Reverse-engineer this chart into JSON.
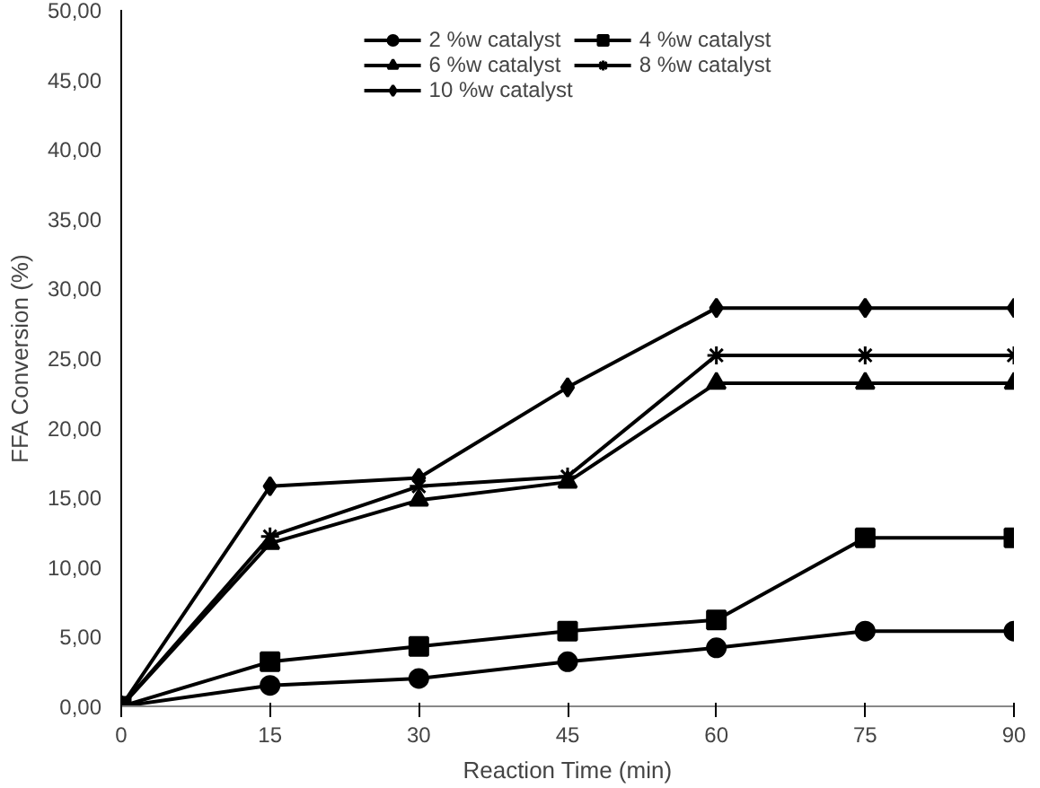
{
  "chart_data": {
    "type": "line",
    "xlabel": "Reaction Time (min)",
    "ylabel": "FFA Conversion (%)",
    "x": [
      0,
      15,
      30,
      45,
      60,
      75,
      90
    ],
    "xlim": [
      0,
      90
    ],
    "xticks": [
      0,
      15,
      30,
      45,
      60,
      75,
      90
    ],
    "ylim": [
      0,
      50
    ],
    "yticks": [
      {
        "value": 0,
        "label": "0,00"
      },
      {
        "value": 5,
        "label": "5,00"
      },
      {
        "value": 10,
        "label": "10,00"
      },
      {
        "value": 15,
        "label": "15,00"
      },
      {
        "value": 20,
        "label": "20,00"
      },
      {
        "value": 25,
        "label": "25,00"
      },
      {
        "value": 30,
        "label": "30,00"
      },
      {
        "value": 35,
        "label": "35,00"
      },
      {
        "value": 40,
        "label": "40,00"
      },
      {
        "value": 45,
        "label": "45,00"
      },
      {
        "value": 50,
        "label": "50,00"
      }
    ],
    "grid": false,
    "legend": "top",
    "line_style": "solid",
    "series": [
      {
        "name": "2 %w catalyst",
        "color": "#000000",
        "marker": "circle",
        "values": [
          0,
          1.5,
          2.0,
          3.2,
          4.2,
          5.4,
          5.4
        ]
      },
      {
        "name": "4 %w catalyst",
        "color": "#000000",
        "marker": "square",
        "values": [
          0,
          3.2,
          4.3,
          5.4,
          6.2,
          12.1,
          12.1
        ]
      },
      {
        "name": "6 %w catalyst",
        "color": "#000000",
        "marker": "triangle",
        "values": [
          0,
          11.7,
          14.8,
          16.1,
          23.2,
          23.2,
          23.2
        ]
      },
      {
        "name": "8 %w catalyst",
        "color": "#000000",
        "marker": "cross",
        "values": [
          0,
          12.2,
          15.8,
          16.5,
          25.2,
          25.2,
          25.2
        ]
      },
      {
        "name": "10 %w catalyst",
        "color": "#000000",
        "marker": "diamond",
        "values": [
          0,
          15.8,
          16.4,
          22.9,
          28.6,
          28.6,
          28.6
        ]
      }
    ]
  }
}
